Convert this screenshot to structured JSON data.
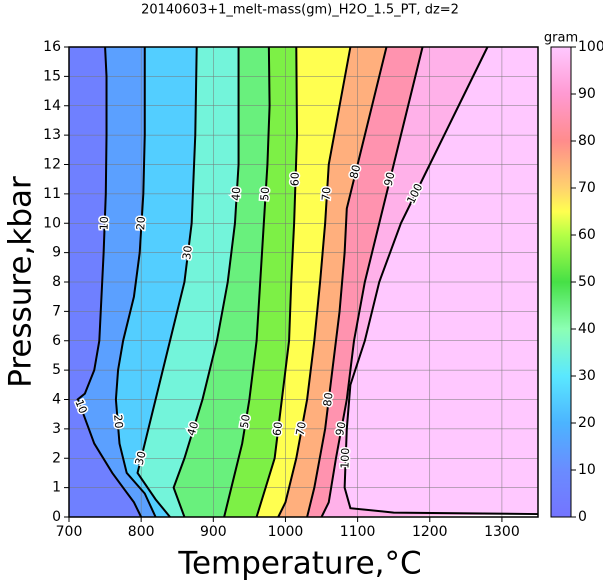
{
  "chart_data": {
    "type": "contour",
    "title": "20140603+1_melt-mass(gm)_H2O_1.5_PT, dz=2",
    "x_label": "Temperature,°C",
    "y_label": "Pressure,kbar",
    "xlim": [
      700,
      1350
    ],
    "ylim": [
      0,
      16
    ],
    "xticks": [
      700,
      800,
      900,
      1000,
      1100,
      1200,
      1300
    ],
    "yticks": [
      0,
      1,
      2,
      3,
      4,
      5,
      6,
      7,
      8,
      9,
      10,
      11,
      12,
      13,
      14,
      15,
      16
    ],
    "grid": true,
    "colorbar": {
      "label": "gram",
      "lim": [
        0,
        100
      ],
      "ticks": [
        0,
        10,
        20,
        30,
        40,
        50,
        60,
        70,
        80,
        90,
        100
      ]
    },
    "colorscale": [
      [
        0,
        "#7474ff"
      ],
      [
        10,
        "#6a8cff"
      ],
      [
        20,
        "#4cb4ff"
      ],
      [
        30,
        "#5ae8ff"
      ],
      [
        40,
        "#8cffb4"
      ],
      [
        50,
        "#46e046"
      ],
      [
        60,
        "#b4ff46"
      ],
      [
        65,
        "#ffff50"
      ],
      [
        70,
        "#ffd26e"
      ],
      [
        80,
        "#ff8c8c"
      ],
      [
        90,
        "#ff9ad2"
      ],
      [
        100,
        "#ffc8ff"
      ]
    ],
    "contours": [
      {
        "level": 10,
        "x": [
          750,
          752,
          752,
          751,
          748,
          745,
          742,
          735,
          722,
          712,
          720,
          735,
          760,
          790,
          800
        ],
        "y": [
          16,
          15,
          13,
          11,
          9,
          7.5,
          6,
          5,
          4.2,
          4,
          3.5,
          2.5,
          1.5,
          0.5,
          0
        ]
      },
      {
        "level": 20,
        "x": [
          805,
          805,
          803,
          798,
          790,
          775,
          768,
          765,
          770,
          780,
          805,
          820
        ],
        "y": [
          16,
          13,
          11,
          9,
          7.5,
          6,
          5,
          4,
          2.5,
          1.5,
          0.8,
          0
        ]
      },
      {
        "level": 30,
        "x": [
          877,
          875,
          870,
          860,
          840,
          820,
          805,
          795,
          820,
          840
        ],
        "y": [
          16,
          13,
          10,
          8,
          6,
          4,
          2.5,
          1.5,
          0.6,
          0
        ]
      },
      {
        "level": 40,
        "x": [
          935,
          935,
          930,
          920,
          905,
          885,
          860,
          845,
          860
        ],
        "y": [
          16,
          12,
          10,
          8,
          6,
          4,
          2,
          1,
          0
        ]
      },
      {
        "level": 50,
        "x": [
          977,
          978,
          975,
          970,
          965,
          960,
          950,
          940,
          925,
          915
        ],
        "y": [
          16,
          14,
          12,
          10,
          8,
          6,
          4,
          2.5,
          1,
          0
        ]
      },
      {
        "level": 60,
        "x": [
          1015,
          1016,
          1012,
          1008,
          1005,
          995,
          985,
          970,
          960
        ],
        "y": [
          16,
          13,
          10,
          8,
          6,
          4,
          2,
          0.8,
          0
        ]
      },
      {
        "level": 70,
        "x": [
          1090,
          1075,
          1060,
          1055,
          1048,
          1040,
          1030,
          1015,
          1000,
          990
        ],
        "y": [
          16,
          14,
          12,
          10,
          8,
          6,
          4,
          2,
          0.5,
          0
        ]
      },
      {
        "level": 80,
        "x": [
          1140,
          1110,
          1085,
          1082,
          1075,
          1065,
          1055,
          1040,
          1030
        ],
        "y": [
          16,
          13,
          10.5,
          9,
          7,
          5,
          3,
          1,
          0
        ]
      },
      {
        "level": 90,
        "x": [
          1190,
          1160,
          1130,
          1110,
          1095,
          1085,
          1070,
          1060,
          1050
        ],
        "y": [
          16,
          13,
          10,
          8,
          6,
          4,
          2,
          0.5,
          0
        ]
      },
      {
        "level": 100,
        "x": [
          1280,
          1240,
          1200,
          1160,
          1130,
          1110,
          1090,
          1085,
          1082,
          1090,
          1150,
          1350
        ],
        "y": [
          16,
          14,
          12,
          10,
          8,
          6,
          4.5,
          3,
          1,
          0.3,
          0.15,
          0.1
        ]
      }
    ]
  }
}
